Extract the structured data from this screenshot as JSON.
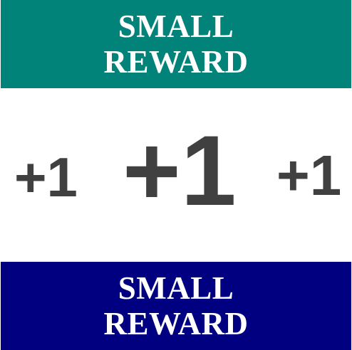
{
  "banners": {
    "top": {
      "line1": "SMALL",
      "line2": "REWARD",
      "background": "#01837a"
    },
    "bottom": {
      "line1": "SMALL",
      "line2": "REWARD",
      "background": "#000080"
    }
  },
  "points": {
    "left": "+1",
    "center": "+1",
    "right": "+1",
    "color": "#404040"
  }
}
